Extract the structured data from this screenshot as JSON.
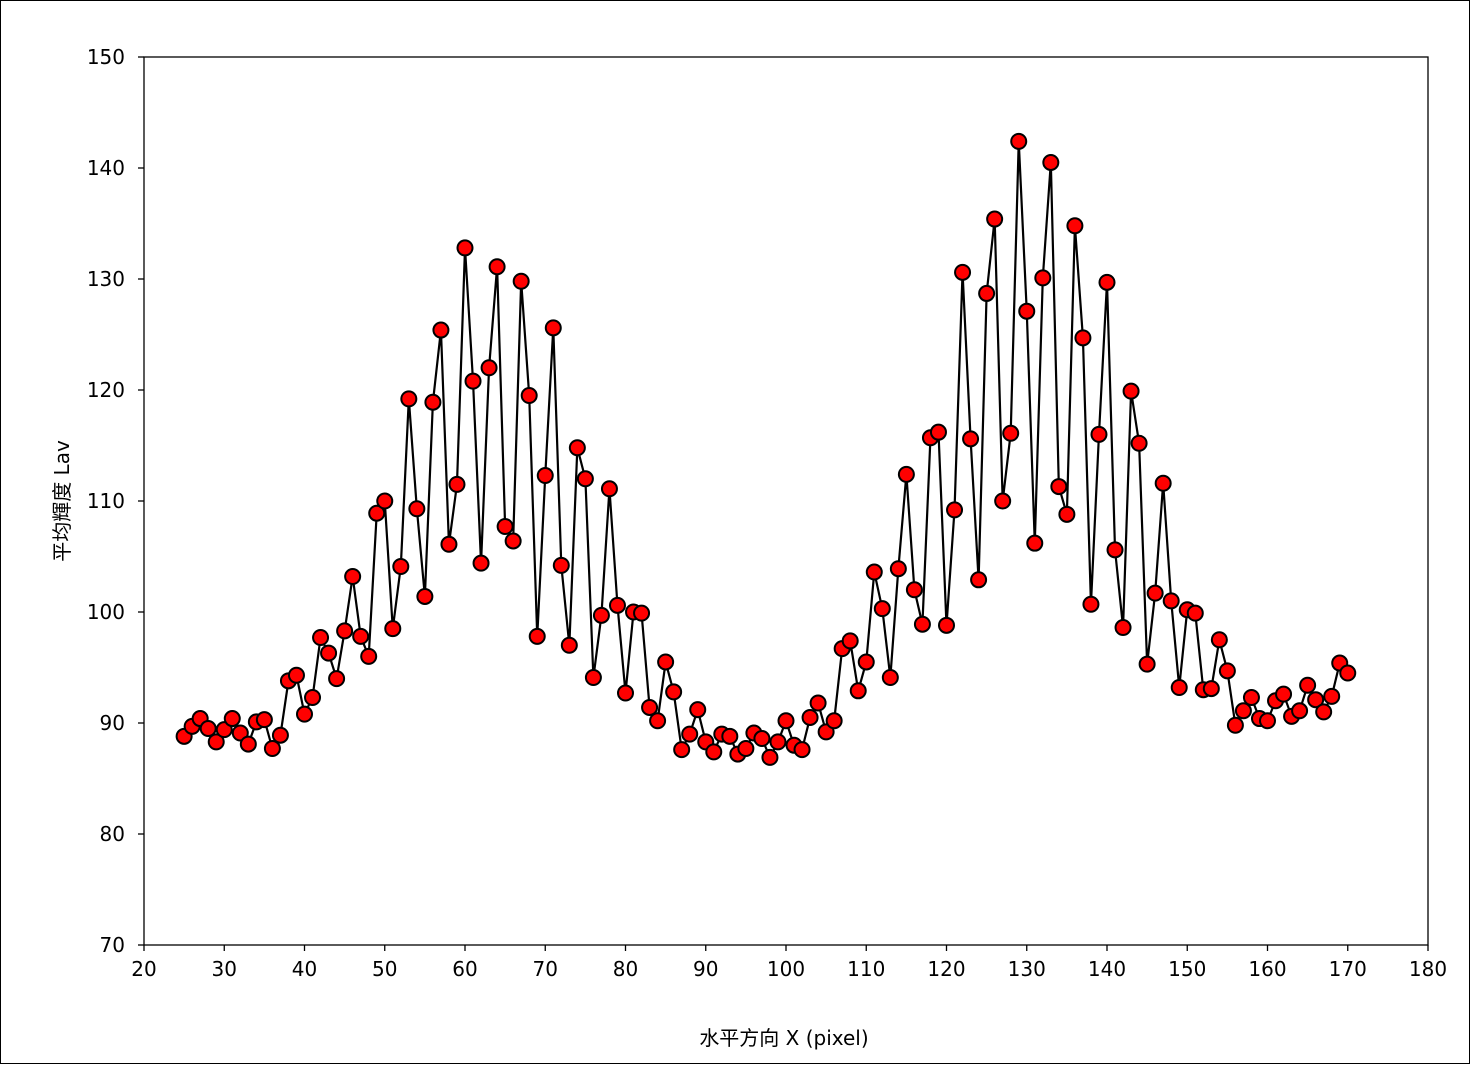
{
  "chart_data": {
    "type": "scatter",
    "xlabel": "水平方向 X (pixel)",
    "ylabel": "平均輝度 Lav",
    "xlim": [
      20,
      180
    ],
    "ylim": [
      70,
      150
    ],
    "xticks": [
      20,
      30,
      40,
      50,
      60,
      70,
      80,
      90,
      100,
      110,
      120,
      130,
      140,
      150,
      160,
      170,
      180
    ],
    "yticks": [
      70,
      80,
      90,
      100,
      110,
      120,
      130,
      140,
      150
    ],
    "grid": true,
    "line_color": "#000000",
    "marker_color": "#ff0000",
    "marker_edge_color": "#000000",
    "series": [
      {
        "x": [
          25,
          26,
          27,
          28,
          29,
          30,
          31,
          32,
          33,
          34,
          35,
          36,
          37,
          38,
          39,
          40,
          41,
          42,
          43,
          44,
          45,
          46,
          47,
          48,
          49,
          50,
          51,
          52,
          53,
          54,
          55,
          56,
          57,
          58,
          59,
          60,
          61,
          62,
          63,
          64,
          65,
          66,
          67,
          68,
          69,
          70,
          71,
          72,
          73,
          74,
          75,
          76,
          77,
          78,
          79,
          80,
          81,
          82,
          83,
          84,
          85,
          86,
          87,
          88,
          89,
          90,
          91,
          92,
          93,
          94,
          95,
          96,
          97,
          98,
          99,
          100,
          101,
          102,
          103,
          104,
          105,
          106,
          107,
          108,
          109,
          110,
          111,
          112,
          113,
          114,
          115,
          116,
          117,
          118,
          119,
          120,
          121,
          122,
          123,
          124,
          125,
          126,
          127,
          128,
          129,
          130,
          131,
          132,
          133,
          134,
          135,
          136,
          137,
          138,
          139,
          140,
          141,
          142,
          143,
          144,
          145,
          146,
          147,
          148,
          149,
          150,
          151,
          152,
          153,
          154,
          155,
          156,
          157,
          158,
          159,
          160,
          161,
          162,
          163,
          164,
          165,
          166,
          167,
          168,
          169,
          170
        ],
        "values": [
          88.8,
          89.7,
          90.4,
          89.5,
          88.3,
          89.4,
          90.4,
          89.1,
          88.1,
          90.1,
          90.3,
          87.7,
          88.9,
          93.8,
          94.3,
          90.8,
          92.3,
          97.7,
          96.3,
          94,
          98.3,
          103.2,
          97.8,
          96,
          108.9,
          110,
          98.5,
          104.1,
          119.2,
          109.3,
          101.4,
          118.9,
          125.4,
          106.1,
          111.5,
          132.8,
          120.8,
          104.4,
          122,
          131.1,
          107.7,
          106.4,
          129.8,
          119.5,
          97.8,
          112.3,
          125.6,
          104.2,
          97,
          114.8,
          112,
          94.1,
          99.7,
          111.1,
          100.6,
          92.7,
          100,
          99.9,
          91.4,
          90.2,
          95.5,
          92.8,
          87.6,
          89,
          91.2,
          88.3,
          87.4,
          89,
          88.8,
          87.2,
          87.7,
          89.1,
          88.6,
          86.9,
          88.3,
          90.2,
          88,
          87.6,
          90.5,
          91.8,
          89.2,
          90.2,
          96.7,
          97.4,
          92.9,
          95.5,
          103.6,
          100.3,
          94.1,
          103.9,
          112.4,
          102,
          98.9,
          115.7,
          116.2,
          98.8,
          109.2,
          130.6,
          115.6,
          102.9,
          128.7,
          135.4,
          110,
          116.1,
          142.4,
          127.1,
          106.2,
          130.1,
          140.5,
          111.3,
          108.8,
          134.8,
          124.7,
          100.7,
          116,
          129.7,
          105.6,
          98.6,
          119.9,
          115.2,
          95.3,
          101.7,
          111.6,
          101,
          93.2,
          100.2,
          99.9,
          93,
          93.1,
          97.5,
          94.7,
          89.8,
          91.1,
          92.3,
          90.4,
          90.2,
          92,
          92.6,
          90.6,
          91.1,
          93.4,
          92.1,
          91,
          92.4,
          95.4,
          94.5
        ]
      }
    ]
  }
}
